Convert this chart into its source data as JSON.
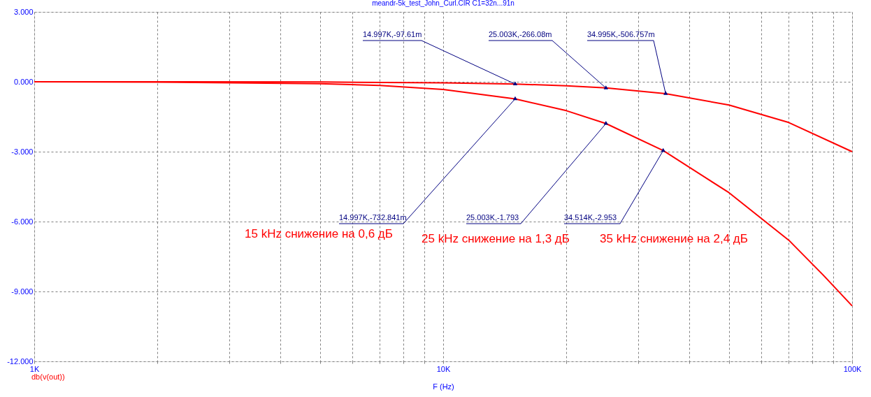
{
  "chart_data": {
    "type": "line",
    "title": "meandr-5k_test_John_Curl.CIR C1=32n...91n",
    "xlabel": "F (Hz)",
    "log": "x",
    "grid": true,
    "line_style": "solid",
    "marker": "none",
    "xlim": [
      1000,
      100000
    ],
    "xticks": [
      {
        "value": 1000,
        "label": "1K"
      },
      {
        "value": 2000,
        "label": null
      },
      {
        "value": 3000,
        "label": null
      },
      {
        "value": 4000,
        "label": null
      },
      {
        "value": 5000,
        "label": null
      },
      {
        "value": 6000,
        "label": null
      },
      {
        "value": 7000,
        "label": null
      },
      {
        "value": 8000,
        "label": null
      },
      {
        "value": 9000,
        "label": null
      },
      {
        "value": 10000,
        "label": "10K"
      },
      {
        "value": 20000,
        "label": null
      },
      {
        "value": 30000,
        "label": null
      },
      {
        "value": 40000,
        "label": null
      },
      {
        "value": 50000,
        "label": null
      },
      {
        "value": 60000,
        "label": null
      },
      {
        "value": 70000,
        "label": null
      },
      {
        "value": 80000,
        "label": null
      },
      {
        "value": 90000,
        "label": null
      },
      {
        "value": 100000,
        "label": "100K"
      }
    ],
    "ylim": [
      -12,
      3
    ],
    "yticks": [
      {
        "value": -12,
        "label": "-12.000"
      },
      {
        "value": -9,
        "label": "-9.000"
      },
      {
        "value": -6,
        "label": "-6.000"
      },
      {
        "value": -3,
        "label": "-3.000"
      },
      {
        "value": 0,
        "label": "0.000"
      },
      {
        "value": 3,
        "label": "3.000"
      }
    ],
    "series": [
      {
        "color": "#ff0000",
        "x": [
          1000,
          2000,
          5000,
          10000,
          14997,
          20000,
          25003,
          34995,
          50000,
          70000,
          100000
        ],
        "values": [
          0,
          -0.002,
          -0.011,
          -0.044,
          -0.098,
          -0.17,
          -0.266,
          -0.507,
          -1.0,
          -1.75,
          -3.0
        ]
      },
      {
        "color": "#ff0000",
        "x": [
          1000,
          2000,
          5000,
          7000,
          10000,
          14997,
          20000,
          25003,
          34514,
          50000,
          70000,
          85000,
          100000
        ],
        "values": [
          -0.003,
          -0.013,
          -0.08,
          -0.16,
          -0.33,
          -0.733,
          -1.24,
          -1.793,
          -2.953,
          -4.76,
          -6.8,
          -8.3,
          -9.62
        ]
      }
    ],
    "annotations": [
      {
        "text": "14.997K,-97.61m",
        "x": 14997,
        "y": -0.09761
      },
      {
        "text": "25.003K,-266.08m",
        "x": 25003,
        "y": -0.26608
      },
      {
        "text": "34.995K,-506.757m",
        "x": 34995,
        "y": -0.506757
      },
      {
        "text": "14.997K,-732.841m",
        "x": 14997,
        "y": -0.732841
      },
      {
        "text": "25.003K,-1.793",
        "x": 25003,
        "y": -1.793
      },
      {
        "text": "34.514K,-2.953",
        "x": 34514,
        "y": -2.953
      },
      "15 kHz снижение на 0,6 дБ",
      "25 kHz снижение на 1,3 дБ",
      "35 kHz снижение на 2,4 дБ",
      "db(v(out))"
    ]
  }
}
